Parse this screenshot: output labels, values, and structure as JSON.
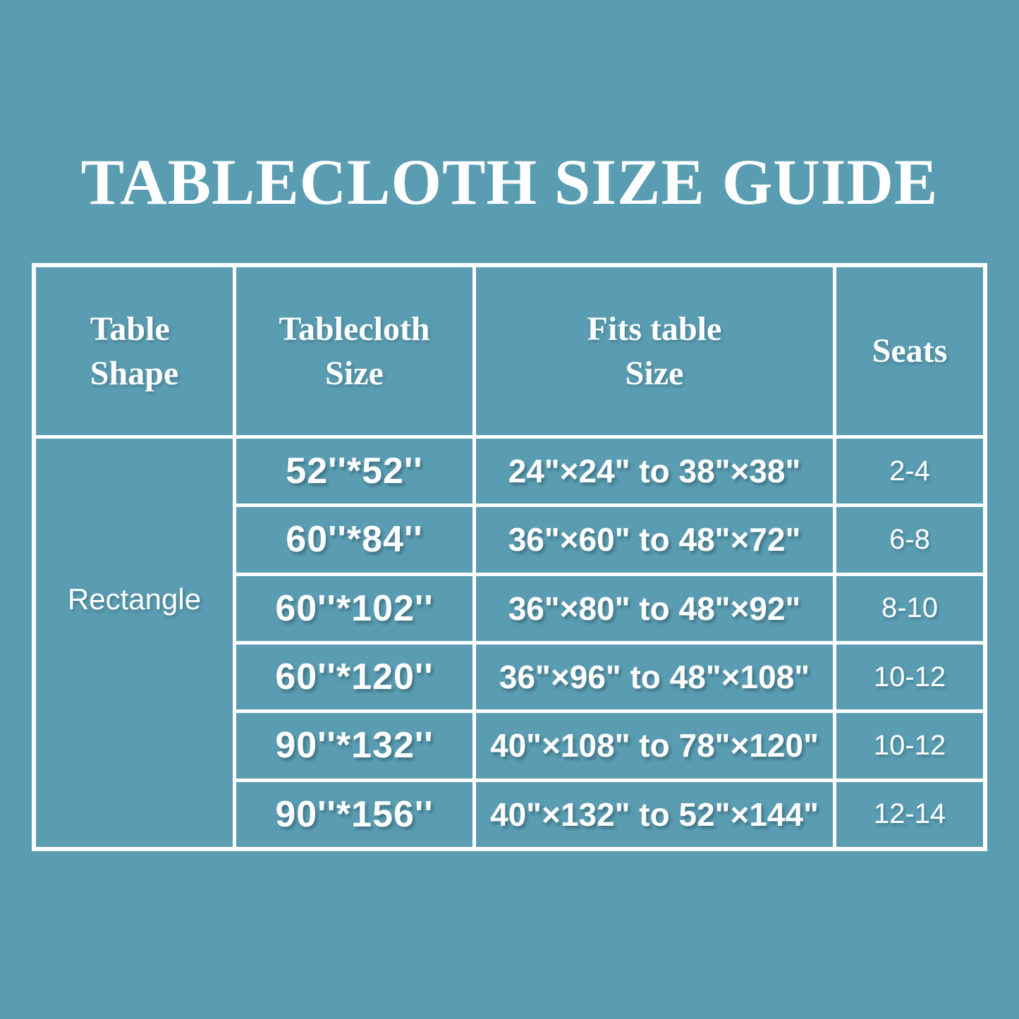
{
  "title": "TABLECLOTH SIZE GUIDE",
  "colors": {
    "background": "#5A9DB2",
    "grid_line": "#FFFFFF",
    "text": "#FFFFFF"
  },
  "table": {
    "headers": [
      {
        "line1": "Table",
        "line2": "Shape"
      },
      {
        "line1": "Tablecloth",
        "line2": "Size"
      },
      {
        "line1": "Fits table",
        "line2": "Size"
      },
      {
        "line1": "Seats",
        "line2": ""
      }
    ],
    "shape_label": "Rectangle",
    "rows": [
      {
        "size": "52''*52''",
        "fits": "24\"×24\" to 38\"×38\"",
        "seats": "2-4"
      },
      {
        "size": "60''*84''",
        "fits": "36\"×60\" to 48\"×72\"",
        "seats": "6-8"
      },
      {
        "size": "60''*102''",
        "fits": "36\"×80\" to 48\"×92\"",
        "seats": "8-10"
      },
      {
        "size": "60''*120''",
        "fits": "36\"×96\" to 48\"×108\"",
        "seats": "10-12"
      },
      {
        "size": "90''*132''",
        "fits": "40\"×108\" to 78\"×120\"",
        "seats": "10-12"
      },
      {
        "size": "90''*156''",
        "fits": "40\"×132\" to 52\"×144\"",
        "seats": "12-14"
      }
    ]
  },
  "chart_data": {
    "type": "table",
    "title": "TABLECLOTH SIZE GUIDE",
    "columns": [
      "Table Shape",
      "Tablecloth Size",
      "Fits table Size",
      "Seats"
    ],
    "rows": [
      [
        "Rectangle",
        "52''*52''",
        "24\"×24\" to 38\"×38\"",
        "2-4"
      ],
      [
        "Rectangle",
        "60''*84''",
        "36\"×60\" to 48\"×72\"",
        "6-8"
      ],
      [
        "Rectangle",
        "60''*102''",
        "36\"×80\" to 48\"×92\"",
        "8-10"
      ],
      [
        "Rectangle",
        "60''*120''",
        "36\"×96\" to 48\"×108\"",
        "10-12"
      ],
      [
        "Rectangle",
        "90''*132''",
        "40\"×108\" to 78\"×120\"",
        "10-12"
      ],
      [
        "Rectangle",
        "90''*156''",
        "40\"×132\" to 52\"×144\"",
        "12-14"
      ]
    ]
  }
}
